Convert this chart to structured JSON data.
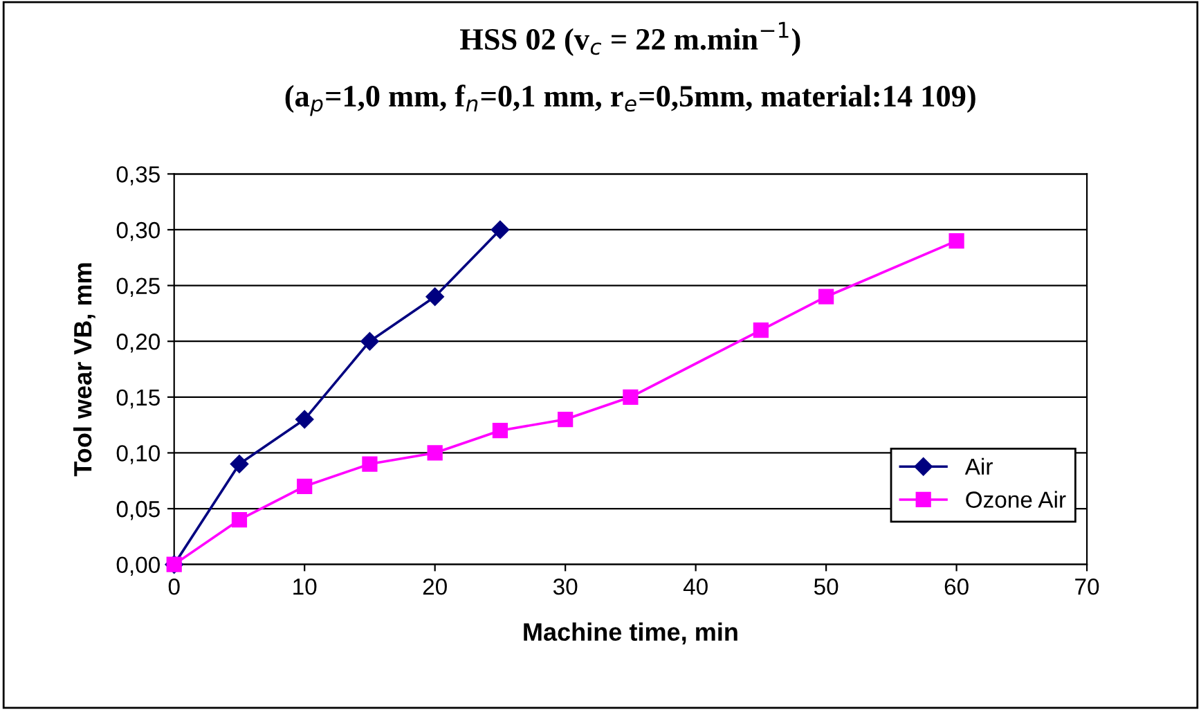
{
  "chart_data": {
    "type": "line",
    "title": "HSS 02 (v$_{c}$ = 22 m.min$^{−1}$)",
    "subtitle": "(a$_{p}$=1,0 mm, f$_{n}$=0,1 mm, r$_{e}$=0,5mm, material:14 109)",
    "xlabel": "Machine time, min",
    "ylabel": "Tool wear VB, mm",
    "series": [
      {
        "name": "Air",
        "color": "#000080",
        "marker": "diamond",
        "x": [
          0,
          5,
          10,
          15,
          20,
          25
        ],
        "values": [
          0,
          0.09,
          0.13,
          0.2,
          0.24,
          0.3
        ]
      },
      {
        "name": "Ozone Air",
        "color": "#ff00ff",
        "marker": "square",
        "x": [
          0,
          5,
          10,
          15,
          20,
          25,
          30,
          35,
          45,
          50,
          60
        ],
        "values": [
          0,
          0.04,
          0.07,
          0.09,
          0.1,
          0.12,
          0.13,
          0.15,
          0.21,
          0.24,
          0.29
        ]
      }
    ],
    "xlim": [
      0,
      70
    ],
    "xticks": [
      0,
      10,
      20,
      30,
      40,
      50,
      60,
      70
    ],
    "ylim": [
      0,
      0.35
    ],
    "yticks": [
      {
        "value": 0,
        "label": "0,00"
      },
      {
        "value": 0.05,
        "label": "0,05"
      },
      {
        "value": 0.1,
        "label": "0,10"
      },
      {
        "value": 0.15,
        "label": "0,15"
      },
      {
        "value": 0.2,
        "label": "0,20"
      },
      {
        "value": 0.25,
        "label": "0,25"
      },
      {
        "value": 0.3,
        "label": "0,30"
      },
      {
        "value": 0.35,
        "label": "0,35"
      }
    ],
    "grid": "y",
    "legend": "lower right",
    "line_style": "solid"
  }
}
